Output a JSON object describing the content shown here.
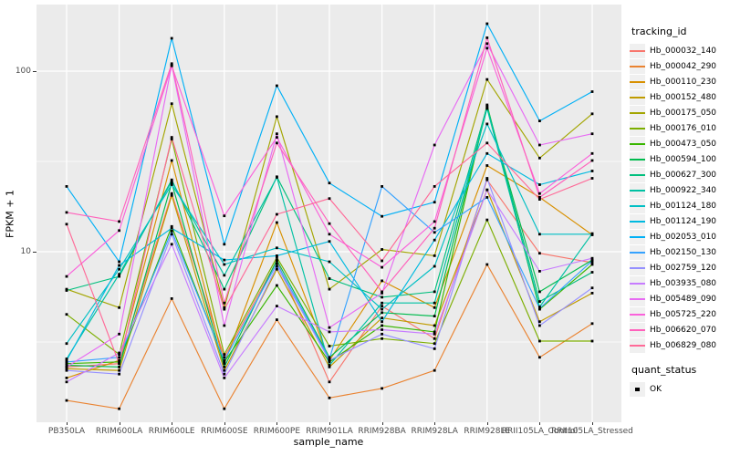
{
  "figure": {
    "panel_bg": "#EBEBEB",
    "grid_color": "#FFFFFF",
    "point_color": "#000000",
    "tick_color": "#333333",
    "tick_label_color": "#4D4D4D"
  },
  "axes": {
    "x_title": "sample_name",
    "y_title": "FPKM + 1",
    "y_ticks": [
      {
        "label": "100",
        "value": 100
      },
      {
        "label": "10",
        "value": 10
      }
    ],
    "y_minor_gridlines": [
      3.1623,
      31.623
    ]
  },
  "legend": {
    "tracking_title": "tracking_id",
    "quant_title": "quant_status",
    "quant_items": [
      {
        "label": "OK",
        "marker": "filled-black-square"
      }
    ]
  },
  "chart_data": {
    "type": "line",
    "x_scale": "categorical",
    "y_scale": "log10",
    "ylim": [
      1.14,
      220
    ],
    "grid": true,
    "legend_position": "right",
    "marker": "filled-black-square",
    "title": "",
    "xlabel": "sample_name",
    "ylabel": "FPKM + 1",
    "categories": [
      "PB350LA",
      "RRIM600LA",
      "RRIM600LE",
      "RRIM600SE",
      "RRIM600PE",
      "RRIM901LA",
      "RRIM928BA",
      "RRIM928LA",
      "RRIM928LE",
      "RRII105LA_Control",
      "RRII105LA_Stressed"
    ],
    "series": [
      {
        "name": "Hb_000032_140",
        "color": "#F8766D",
        "values": [
          2.3,
          2.4,
          21,
          2.6,
          8.9,
          1.9,
          5.0,
          3.3,
          25,
          9.8,
          8.7
        ]
      },
      {
        "name": "Hb_000042_290",
        "color": "#EA8331",
        "values": [
          1.5,
          1.35,
          5.5,
          1.35,
          4.2,
          1.55,
          1.75,
          2.2,
          8.5,
          2.6,
          4.0
        ]
      },
      {
        "name": "Hb_000110_230",
        "color": "#D89000",
        "values": [
          2.0,
          2.5,
          32,
          2.4,
          14.5,
          2.5,
          6.9,
          4.9,
          30,
          20,
          12.4
        ]
      },
      {
        "name": "Hb_000152_480",
        "color": "#C09B00",
        "values": [
          2.25,
          2.2,
          20.5,
          2.2,
          8.0,
          2.3,
          4.3,
          3.9,
          22,
          4.1,
          5.9
        ]
      },
      {
        "name": "Hb_000175_050",
        "color": "#A3A500",
        "values": [
          6.2,
          4.9,
          66,
          4.9,
          56,
          6.2,
          10.3,
          9.5,
          90,
          33,
          58
        ]
      },
      {
        "name": "Hb_000176_010",
        "color": "#7CAE00",
        "values": [
          4.5,
          2.7,
          42,
          2.7,
          9.3,
          3.0,
          3.3,
          3.1,
          15,
          3.2,
          3.2
        ]
      },
      {
        "name": "Hb_000473_050",
        "color": "#39B600",
        "values": [
          2.4,
          2.45,
          13.8,
          2.45,
          6.5,
          2.45,
          3.9,
          3.6,
          65,
          4.8,
          8.5
        ]
      },
      {
        "name": "Hb_000594_100",
        "color": "#00BB4E",
        "values": [
          2.35,
          2.3,
          24,
          2.3,
          9.0,
          2.6,
          4.6,
          4.4,
          63,
          6.0,
          9.0
        ]
      },
      {
        "name": "Hb_000627_300",
        "color": "#00BF7D",
        "values": [
          6.1,
          7.3,
          25,
          6.2,
          26,
          7.1,
          5.6,
          6.0,
          64,
          5.3,
          7.7
        ]
      },
      {
        "name": "Hb_000922_340",
        "color": "#00C1A3",
        "values": [
          2.55,
          7.5,
          24.5,
          7.4,
          25.8,
          2.35,
          5.2,
          5.2,
          62,
          4.95,
          12.6
        ]
      },
      {
        "name": "Hb_001124_180",
        "color": "#00BFC4",
        "values": [
          3.1,
          8.0,
          23.5,
          8.5,
          10.5,
          8.8,
          4.8,
          8.3,
          51,
          12.5,
          12.5
        ]
      },
      {
        "name": "Hb_001124_190",
        "color": "#00BAE0",
        "values": [
          2.5,
          8.4,
          13.5,
          9.0,
          9.5,
          11.4,
          4.1,
          11.6,
          35,
          23.5,
          28
        ]
      },
      {
        "name": "Hb_002053_010",
        "color": "#00B0F6",
        "values": [
          23,
          8.8,
          152,
          11,
          83,
          24,
          15.7,
          18.8,
          183,
          53,
          77
        ]
      },
      {
        "name": "Hb_002150_130",
        "color": "#35A2FF",
        "values": [
          2.45,
          2.6,
          13,
          2.5,
          8.6,
          2.55,
          23,
          12.8,
          20,
          4.85,
          8.9
        ]
      },
      {
        "name": "Hb_002759_120",
        "color": "#9590FF",
        "values": [
          2.2,
          2.1,
          12.5,
          2.1,
          8.3,
          2.5,
          3.5,
          2.9,
          25.5,
          3.9,
          6.3
        ]
      },
      {
        "name": "Hb_003935_080",
        "color": "#C77CFF",
        "values": [
          1.9,
          2.75,
          11,
          2.0,
          5.0,
          3.6,
          3.7,
          3.5,
          22,
          7.8,
          9.2
        ]
      },
      {
        "name": "Hb_005489_090",
        "color": "#E76BF3",
        "values": [
          2.3,
          3.5,
          108,
          3.9,
          45,
          3.8,
          5.9,
          39,
          142,
          39,
          45
        ]
      },
      {
        "name": "Hb_005725_220",
        "color": "#FA62DB",
        "values": [
          7.3,
          13.1,
          107,
          15.8,
          43,
          12.5,
          8.2,
          14.7,
          134,
          21,
          35
        ]
      },
      {
        "name": "Hb_006620_070",
        "color": "#FF62BC",
        "values": [
          16.5,
          14.7,
          110,
          5.2,
          40,
          14.3,
          6.0,
          13.5,
          153,
          20,
          32
        ]
      },
      {
        "name": "Hb_006829_080",
        "color": "#FF6A98",
        "values": [
          14.2,
          2.4,
          43,
          4.8,
          16.1,
          19.7,
          8.9,
          23,
          40,
          19.5,
          25.5
        ]
      }
    ]
  }
}
